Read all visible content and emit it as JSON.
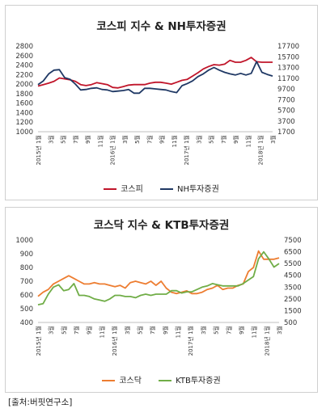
{
  "source_note": "[출처:버핏연구소]",
  "chart_data": [
    {
      "type": "line",
      "title": "코스피 지수 & NH투자증권",
      "colors": [
        "#c0152a",
        "#1f3864"
      ],
      "x_tick_labels": [
        "2015년 1월",
        "3월",
        "5월",
        "7월",
        "9월",
        "11월",
        "2016년 1월",
        "3월",
        "5월",
        "7월",
        "9월",
        "11월",
        "2017년 1월",
        "3월",
        "5월",
        "7월",
        "9월",
        "11월",
        "2018년 1월",
        "3월"
      ],
      "ylim": [
        1000,
        2800
      ],
      "y_ticks": [
        1000,
        1200,
        1400,
        1600,
        1800,
        2000,
        2200,
        2400,
        2600,
        2800
      ],
      "y2lim": [
        1700,
        17700
      ],
      "y2_ticks": [
        1700,
        3700,
        5700,
        7700,
        9700,
        11700,
        13700,
        15700,
        17700
      ],
      "series": [
        {
          "name": "코스피",
          "axis": "left",
          "values": [
            1960,
            1990,
            2020,
            2060,
            2130,
            2110,
            2090,
            2060,
            1990,
            1970,
            1990,
            2030,
            2010,
            1990,
            1930,
            1920,
            1950,
            1980,
            1990,
            1990,
            1990,
            2020,
            2040,
            2040,
            2020,
            2000,
            2040,
            2080,
            2100,
            2170,
            2240,
            2320,
            2370,
            2410,
            2400,
            2420,
            2500,
            2460,
            2460,
            2500,
            2560,
            2470,
            2460,
            2460,
            2460
          ]
        },
        {
          "name": "NH투자증권",
          "axis": "right",
          "values": [
            10500,
            11200,
            12500,
            13200,
            13300,
            11800,
            11500,
            10600,
            9500,
            9600,
            9800,
            9900,
            9600,
            9500,
            9200,
            9300,
            9400,
            9600,
            8900,
            8900,
            9800,
            9800,
            9700,
            9600,
            9500,
            9200,
            9000,
            10300,
            10700,
            11200,
            12000,
            12500,
            13200,
            13700,
            13200,
            12800,
            12500,
            12300,
            12600,
            12300,
            12600,
            14800,
            12800,
            12400,
            12100
          ]
        }
      ]
    },
    {
      "type": "line",
      "title": "코스닥 지수 & KTB투자증권",
      "colors": [
        "#ed7d31",
        "#70ad47"
      ],
      "x_tick_labels": [
        "2015년 1월",
        "3월",
        "5월",
        "7월",
        "9월",
        "11월",
        "2016년 1월",
        "3월",
        "5월",
        "7월",
        "9월",
        "11월",
        "2017년 1월",
        "3월",
        "5월",
        "7월",
        "9월",
        "11월",
        "2018년 1월",
        "3월"
      ],
      "ylim": [
        400,
        1000
      ],
      "y_ticks": [
        400,
        500,
        600,
        700,
        800,
        900,
        1000
      ],
      "y2lim": [
        500,
        7500
      ],
      "y2_ticks": [
        500,
        1500,
        2500,
        3500,
        4500,
        5500,
        6500,
        7500
      ],
      "series": [
        {
          "name": "코스닥",
          "axis": "left",
          "values": [
            590,
            620,
            640,
            680,
            700,
            720,
            740,
            720,
            700,
            680,
            680,
            690,
            680,
            680,
            670,
            660,
            670,
            650,
            690,
            700,
            690,
            680,
            700,
            670,
            700,
            650,
            620,
            610,
            620,
            630,
            610,
            610,
            620,
            640,
            650,
            670,
            640,
            650,
            650,
            670,
            680,
            770,
            800,
            920,
            860,
            860,
            860,
            870
          ]
        },
        {
          "name": "KTB투자증권",
          "axis": "right",
          "values": [
            2000,
            2100,
            2900,
            3500,
            3700,
            3200,
            3300,
            3800,
            2800,
            2800,
            2700,
            2500,
            2400,
            2300,
            2500,
            2800,
            2800,
            2700,
            2700,
            2600,
            2800,
            2900,
            2800,
            2900,
            2900,
            2900,
            3200,
            3200,
            3000,
            3100,
            3100,
            3300,
            3500,
            3600,
            3800,
            3700,
            3600,
            3600,
            3600,
            3600,
            3800,
            4100,
            4400,
            5900,
            6500,
            5900,
            5200,
            5500
          ]
        }
      ]
    }
  ]
}
